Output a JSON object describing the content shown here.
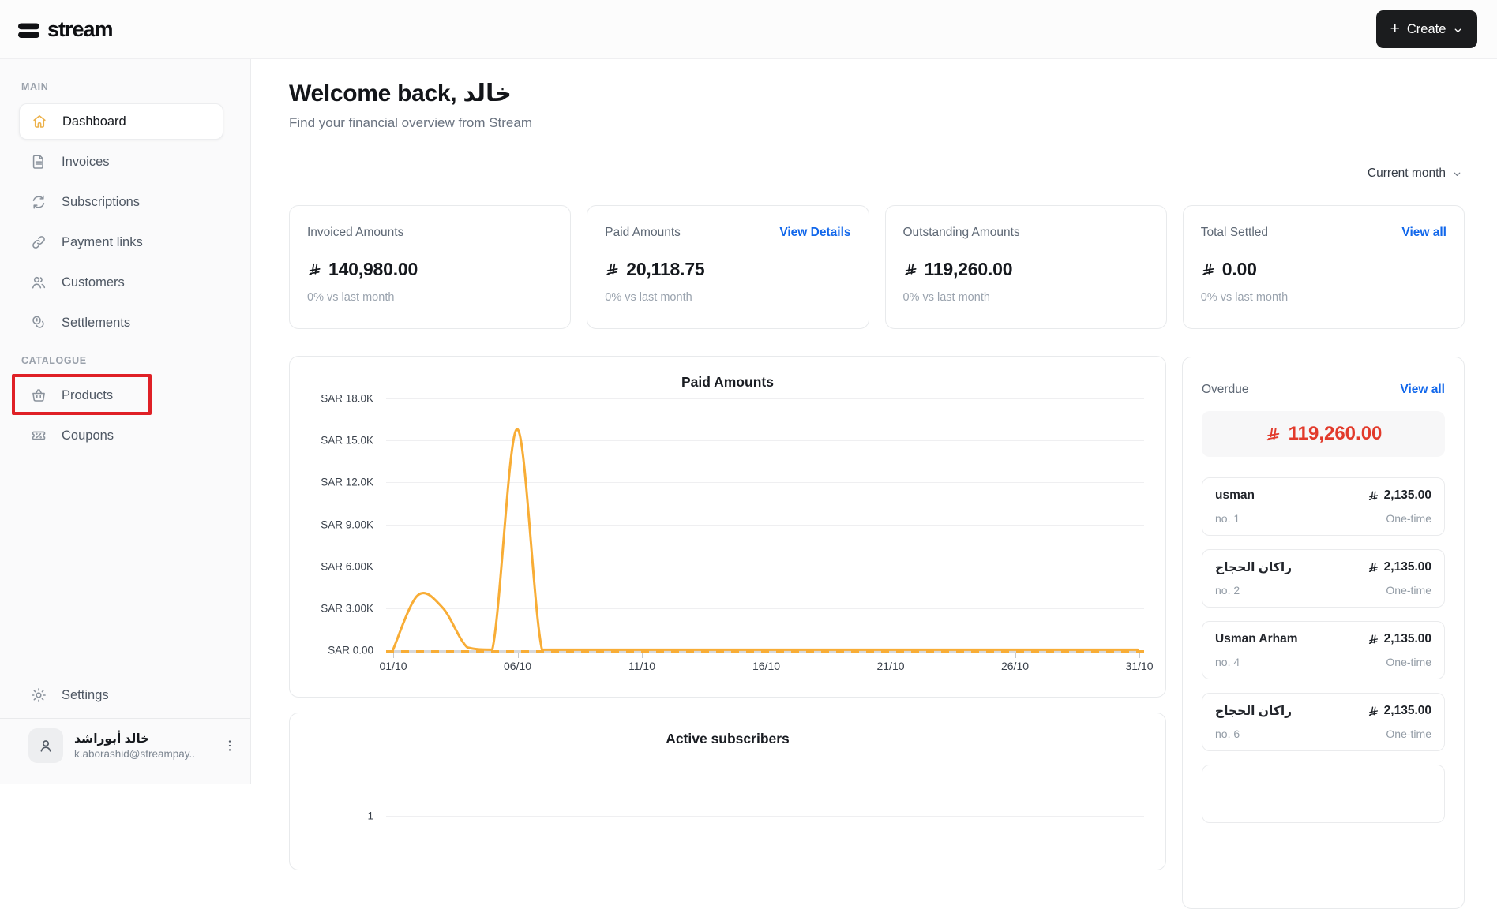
{
  "topbar": {
    "logo_text": "stream",
    "create_label": "Create"
  },
  "sidebar": {
    "sections": [
      {
        "label": "MAIN",
        "items": [
          {
            "label": "Dashboard",
            "icon": "home-icon",
            "active": true
          },
          {
            "label": "Invoices",
            "icon": "invoice-icon"
          },
          {
            "label": "Subscriptions",
            "icon": "refresh-icon"
          },
          {
            "label": "Payment links",
            "icon": "link-icon"
          },
          {
            "label": "Customers",
            "icon": "people-icon"
          },
          {
            "label": "Settlements",
            "icon": "coins-icon"
          }
        ]
      },
      {
        "label": "CATALOGUE",
        "items": [
          {
            "label": "Products",
            "icon": "basket-icon",
            "highlighted": true
          },
          {
            "label": "Coupons",
            "icon": "ticket-icon"
          }
        ]
      }
    ],
    "settings_label": "Settings",
    "profile": {
      "name": "خالد أبوراشد",
      "email": "k.aborashid@streampay..."
    }
  },
  "header": {
    "title": "Welcome back, خالد",
    "subtitle": "Find your financial overview from Stream"
  },
  "filters": {
    "period_selector": "Current month"
  },
  "stats": [
    {
      "label": "Invoiced Amounts",
      "value": "140,980.00",
      "sub": "0% vs last month"
    },
    {
      "label": "Paid Amounts",
      "value": "20,118.75",
      "sub": "0% vs last month",
      "link": "View Details"
    },
    {
      "label": "Outstanding Amounts",
      "value": "119,260.00",
      "sub": "0% vs last month"
    },
    {
      "label": "Total Settled",
      "value": "0.00",
      "sub": "0% vs last month",
      "link": "View all"
    }
  ],
  "overdue": {
    "label": "Overdue",
    "link": "View all",
    "total": "119,260.00",
    "items": [
      {
        "name": "usman",
        "number": "no. 1",
        "amount": "2,135.00",
        "type": "One-time"
      },
      {
        "name": "راكان الحجاج",
        "number": "no. 2",
        "amount": "2,135.00",
        "type": "One-time"
      },
      {
        "name": "Usman Arham",
        "number": "no. 4",
        "amount": "2,135.00",
        "type": "One-time"
      },
      {
        "name": "راكان الحجاج",
        "number": "no. 6",
        "amount": "2,135.00",
        "type": "One-time"
      }
    ],
    "partial_fifth_item": true
  },
  "chart_data": [
    {
      "type": "line",
      "title": "Paid Amounts",
      "currency": "SAR",
      "ylabel": "",
      "xlabel": "",
      "ylim": [
        0,
        18000
      ],
      "y_tick_step": 3000,
      "y_ticks": [
        "SAR 18.0K",
        "SAR 15.0K",
        "SAR 12.0K",
        "SAR 9.00K",
        "SAR 6.00K",
        "SAR 3.00K",
        "SAR 0.00"
      ],
      "x_ticks": [
        "01/10",
        "06/10",
        "11/10",
        "16/10",
        "21/10",
        "26/10",
        "31/10"
      ],
      "x_tick_days": [
        1,
        6,
        11,
        16,
        21,
        26,
        31
      ],
      "x_domain_days": [
        1,
        31
      ],
      "values": [
        0,
        3900,
        3000,
        150,
        0,
        15800,
        0,
        0,
        0,
        0,
        0,
        0,
        0,
        0,
        0,
        0,
        0,
        0,
        0,
        0,
        0,
        0,
        0,
        0,
        0,
        0,
        0,
        0,
        0,
        0,
        0
      ],
      "line_color": "#F8AD36",
      "grid": true,
      "legend": false
    },
    {
      "type": "line",
      "title": "Active subscribers",
      "y_ticks": [
        "1"
      ],
      "partially_visible": true
    }
  ],
  "colors": {
    "accent_amber": "#F8AD36",
    "link_blue": "#1167EB",
    "overdue_red": "#E23A2B",
    "annotation_red": "#DF2026",
    "sidebar_bg": "#FAFAFB",
    "create_button_bg": "#1B1C1E"
  }
}
